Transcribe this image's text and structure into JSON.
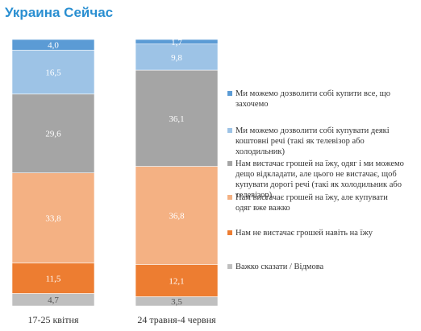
{
  "header": {
    "title": "Украина Сейчас"
  },
  "chart_data": {
    "type": "bar",
    "stacked": true,
    "percent": true,
    "categories": [
      "17-25 квітня",
      "24 травня-4 червня"
    ],
    "series": [
      {
        "name": "Важко сказати / Відмова",
        "color": "#bfbfbf",
        "values": [
          4.7,
          3.5
        ]
      },
      {
        "name": "Нам не вистачає грошей навіть на їжу",
        "color": "#ed7d31",
        "values": [
          11.5,
          12.1
        ]
      },
      {
        "name": "Нам вистачає грошей на їжу, але купувати одяг вже важко",
        "color": "#f4b183",
        "values": [
          33.8,
          36.8
        ]
      },
      {
        "name": "Нам вистачає грошей на їжу, одяг і ми можемо дещо відкладати, але цього не вистачає, щоб купувати дорогі речі (такі як холодильник або телевізор)",
        "color": "#a5a5a5",
        "values": [
          29.6,
          36.1
        ]
      },
      {
        "name": "Ми можемо дозволити собі купувати деякі коштовні речі (такі як телевізор або холодильник)",
        "color": "#9dc3e6",
        "values": [
          16.5,
          9.8
        ]
      },
      {
        "name": "Ми можемо дозволити собі купити все, що захочемо",
        "color": "#5b9bd5",
        "values": [
          4.0,
          1.7
        ]
      }
    ],
    "value_labels": [
      [
        "4,7",
        "3,5"
      ],
      [
        "11,5",
        "12,1"
      ],
      [
        "33,8",
        "36,8"
      ],
      [
        "29,6",
        "36,1"
      ],
      [
        "16,5",
        "9,8"
      ],
      [
        "4,0",
        "1,7"
      ]
    ],
    "legend": {
      "placement": "right",
      "order": [
        5,
        4,
        3,
        2,
        1,
        0
      ]
    }
  }
}
